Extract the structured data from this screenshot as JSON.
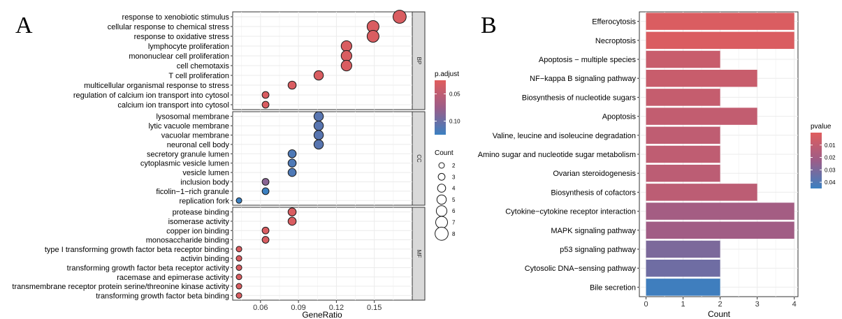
{
  "panels": {
    "left_letter": "A",
    "right_letter": "B"
  },
  "colors": {
    "high": "#e05d5d",
    "low": "#3b80c1",
    "grid": "#ebebeb",
    "strip": "#d9d9d9"
  },
  "chart_data": [
    {
      "type": "scatter",
      "subtype": "dotplot",
      "xlabel": "GeneRatio",
      "xlim": [
        0.038,
        0.18
      ],
      "xticks": [
        0.06,
        0.09,
        0.12,
        0.15
      ],
      "xtick_labels": [
        "0.06",
        "0.09",
        "0.12",
        "0.15"
      ],
      "grid": true,
      "facets": [
        {
          "name": "BP",
          "items": [
            {
              "term": "response to xenobiotic stimulus",
              "x": 0.17,
              "count": 8,
              "padj": 0.03
            },
            {
              "term": "cellular response to chemical stress",
              "x": 0.149,
              "count": 7,
              "padj": 0.03
            },
            {
              "term": "response to oxidative stress",
              "x": 0.149,
              "count": 7,
              "padj": 0.03
            },
            {
              "term": "lymphocyte proliferation",
              "x": 0.128,
              "count": 6,
              "padj": 0.03
            },
            {
              "term": "mononuclear cell proliferation",
              "x": 0.128,
              "count": 6,
              "padj": 0.03
            },
            {
              "term": "cell chemotaxis",
              "x": 0.128,
              "count": 6,
              "padj": 0.03
            },
            {
              "term": "T cell proliferation",
              "x": 0.106,
              "count": 5,
              "padj": 0.03
            },
            {
              "term": "multicellular organismal response to stress",
              "x": 0.085,
              "count": 4,
              "padj": 0.03
            },
            {
              "term": "regulation of calcium ion transport into cytosol",
              "x": 0.064,
              "count": 3,
              "padj": 0.03
            },
            {
              "term": "calcium ion transport into cytosol",
              "x": 0.064,
              "count": 3,
              "padj": 0.03
            }
          ]
        },
        {
          "name": "CC",
          "items": [
            {
              "term": "lysosomal membrane",
              "x": 0.106,
              "count": 5,
              "padj": 0.11
            },
            {
              "term": "lytic vacuole membrane",
              "x": 0.106,
              "count": 5,
              "padj": 0.11
            },
            {
              "term": "vacuolar membrane",
              "x": 0.106,
              "count": 5,
              "padj": 0.11
            },
            {
              "term": "neuronal cell body",
              "x": 0.106,
              "count": 5,
              "padj": 0.11
            },
            {
              "term": "secretory granule lumen",
              "x": 0.085,
              "count": 4,
              "padj": 0.115
            },
            {
              "term": "cytoplasmic vesicle lumen",
              "x": 0.085,
              "count": 4,
              "padj": 0.115
            },
            {
              "term": "vesicle lumen",
              "x": 0.085,
              "count": 4,
              "padj": 0.115
            },
            {
              "term": "inclusion body",
              "x": 0.064,
              "count": 3,
              "padj": 0.085
            },
            {
              "term": "ficolin−1−rich granule",
              "x": 0.064,
              "count": 3,
              "padj": 0.125
            },
            {
              "term": "replication fork",
              "x": 0.043,
              "count": 2,
              "padj": 0.125
            }
          ]
        },
        {
          "name": "MF",
          "items": [
            {
              "term": "protease binding",
              "x": 0.085,
              "count": 4,
              "padj": 0.03
            },
            {
              "term": "isomerase activity",
              "x": 0.085,
              "count": 4,
              "padj": 0.03
            },
            {
              "term": "copper ion binding",
              "x": 0.064,
              "count": 3,
              "padj": 0.03
            },
            {
              "term": "monosaccharide binding",
              "x": 0.064,
              "count": 3,
              "padj": 0.03
            },
            {
              "term": "type I transforming growth factor beta receptor binding",
              "x": 0.043,
              "count": 2,
              "padj": 0.03
            },
            {
              "term": "activin binding",
              "x": 0.043,
              "count": 2,
              "padj": 0.03
            },
            {
              "term": "transforming growth factor beta receptor activity",
              "x": 0.043,
              "count": 2,
              "padj": 0.03
            },
            {
              "term": "racemase and epimerase activity",
              "x": 0.043,
              "count": 2,
              "padj": 0.03
            },
            {
              "term": "transmembrane receptor protein serine/threonine kinase activity",
              "x": 0.043,
              "count": 2,
              "padj": 0.03
            },
            {
              "term": "transforming growth factor beta binding",
              "x": 0.043,
              "count": 2,
              "padj": 0.03
            }
          ]
        }
      ],
      "legend_color": {
        "title": "p.adjust",
        "range": [
          0.025,
          0.125
        ],
        "ticks": [
          0.05,
          0.1
        ],
        "tick_labels": [
          "0.05",
          "0.10"
        ],
        "placement": "right"
      },
      "legend_size": {
        "title": "Count",
        "values": [
          2,
          3,
          4,
          5,
          6,
          7,
          8
        ],
        "labels": [
          "2",
          "3",
          "4",
          "5",
          "6",
          "7",
          "8"
        ],
        "placement": "right"
      }
    },
    {
      "type": "bar",
      "orientation": "horizontal",
      "xlabel": "Count",
      "xlim": [
        -0.18,
        4.1
      ],
      "xticks": [
        0,
        1,
        2,
        3,
        4
      ],
      "xtick_labels": [
        "0",
        "1",
        "2",
        "3",
        "4"
      ],
      "grid": true,
      "categories": [
        "Efferocytosis",
        "Necroptosis",
        "Apoptosis − multiple species",
        "NF−kappa B signaling pathway",
        "Biosynthesis of nucleotide sugars",
        "Apoptosis",
        "Valine, leucine and isoleucine degradation",
        "Amino sugar and nucleotide sugar metabolism",
        "Ovarian steroidogenesis",
        "Biosynthesis of cofactors",
        "Cytokine−cytokine receptor interaction",
        "MAPK signaling pathway",
        "p53 signaling pathway",
        "Cytosolic DNA−sensing pathway",
        "Bile secretion"
      ],
      "values": [
        4,
        4,
        2,
        3,
        2,
        3,
        2,
        2,
        2,
        3,
        4,
        4,
        2,
        2,
        2
      ],
      "pvalues": [
        0.002,
        0.002,
        0.008,
        0.008,
        0.009,
        0.01,
        0.011,
        0.011,
        0.012,
        0.012,
        0.02,
        0.021,
        0.03,
        0.033,
        0.044
      ],
      "legend_color": {
        "title": "pvalue",
        "range": [
          0.0,
          0.045
        ],
        "ticks": [
          0.01,
          0.02,
          0.03,
          0.04
        ],
        "tick_labels": [
          "0.01",
          "0.02",
          "0.03",
          "0.04"
        ],
        "reverse": true,
        "placement": "right"
      }
    }
  ]
}
